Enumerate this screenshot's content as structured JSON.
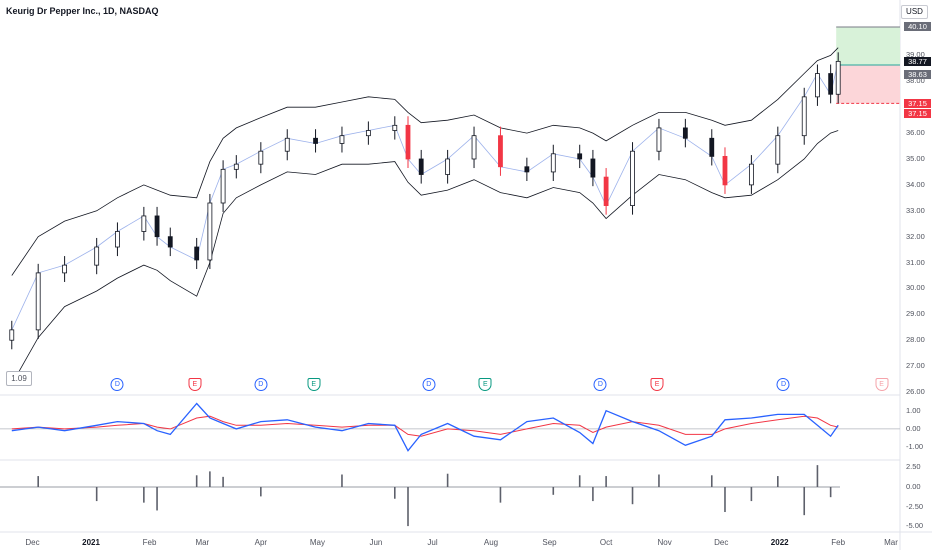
{
  "header": {
    "title": "Keurig Dr Pepper Inc., 1D, NASDAQ",
    "currency": "USD"
  },
  "price_scale": {
    "ticks": [
      "39.00",
      "38.00",
      "36.00",
      "35.00",
      "34.00",
      "33.00",
      "32.00",
      "31.00",
      "30.00",
      "29.00",
      "28.00",
      "27.00",
      "26.00"
    ],
    "tick_values": [
      39,
      38,
      36,
      35,
      34,
      33,
      32,
      31,
      30,
      29,
      28,
      27,
      26
    ],
    "tags": [
      {
        "name": "target-price-tag",
        "label": "40.10",
        "style": "gray",
        "value": 40.1
      },
      {
        "name": "last-price-tag",
        "label": "38.77",
        "style": "dark",
        "value": 38.77
      },
      {
        "name": "entry-price-tag",
        "label": "38.63",
        "style": "gray",
        "value": 38.63
      },
      {
        "name": "stop-price-tag",
        "label": "37.15",
        "style": "red",
        "value": 37.15
      },
      {
        "name": "stop-price-tag-2",
        "label": "37.15",
        "style": "red",
        "value": 37.15
      }
    ]
  },
  "value_box": "1.09",
  "oscillator_scale": [
    "1.00",
    "0.00",
    "-1.00"
  ],
  "oscillator_values": [
    1.0,
    0.0,
    -1.0
  ],
  "histogram_scale": [
    "2.50",
    "0.00",
    "-2.50",
    "-5.00"
  ],
  "histogram_values": [
    2.5,
    0.0,
    -2.5,
    -5.0
  ],
  "events": [
    {
      "type": "div",
      "label": "D",
      "date": "2021-01-15",
      "color": "#2962ff"
    },
    {
      "type": "earn",
      "label": "E",
      "date": "2021-02-25",
      "color": "#f23645"
    },
    {
      "type": "div",
      "label": "D",
      "date": "2021-04-01",
      "color": "#2962ff"
    },
    {
      "type": "earn",
      "label": "E",
      "date": "2021-04-29",
      "color": "#089981"
    },
    {
      "type": "div",
      "label": "D",
      "date": "2021-06-29",
      "color": "#2962ff"
    },
    {
      "type": "earn",
      "label": "E",
      "date": "2021-07-29",
      "color": "#089981"
    },
    {
      "type": "div",
      "label": "D",
      "date": "2021-09-28",
      "color": "#2962ff"
    },
    {
      "type": "earn",
      "label": "E",
      "date": "2021-10-28",
      "color": "#f23645"
    },
    {
      "type": "div",
      "label": "D",
      "date": "2022-01-03",
      "color": "#2962ff"
    },
    {
      "type": "earn",
      "label": "E",
      "date": "2022-02-24",
      "color": "#f5a3aa"
    }
  ],
  "time_axis": [
    {
      "label": "Dec",
      "bold": false,
      "date": "2020-12-01"
    },
    {
      "label": "2021",
      "bold": true,
      "date": "2021-01-01"
    },
    {
      "label": "Feb",
      "bold": false,
      "date": "2021-02-01"
    },
    {
      "label": "Mar",
      "bold": false,
      "date": "2021-03-01"
    },
    {
      "label": "Apr",
      "bold": false,
      "date": "2021-04-01"
    },
    {
      "label": "May",
      "bold": false,
      "date": "2021-05-01"
    },
    {
      "label": "Jun",
      "bold": false,
      "date": "2021-06-01"
    },
    {
      "label": "Jul",
      "bold": false,
      "date": "2021-07-01"
    },
    {
      "label": "Aug",
      "bold": false,
      "date": "2021-08-01"
    },
    {
      "label": "Sep",
      "bold": false,
      "date": "2021-09-01"
    },
    {
      "label": "Oct",
      "bold": false,
      "date": "2021-10-01"
    },
    {
      "label": "Nov",
      "bold": false,
      "date": "2021-11-01"
    },
    {
      "label": "Dec",
      "bold": false,
      "date": "2021-12-01"
    },
    {
      "label": "2022",
      "bold": true,
      "date": "2022-01-01"
    },
    {
      "label": "Feb",
      "bold": false,
      "date": "2022-02-01"
    },
    {
      "label": "Mar",
      "bold": false,
      "date": "2022-03-01"
    }
  ],
  "colors": {
    "candle": "#131722",
    "candle_highlight": "#f23645",
    "band": "#131722",
    "basis": "#5b7fde",
    "osc_fast": "#2962ff",
    "osc_slow": "#f23645",
    "histogram": "#5d606b",
    "profit_zone": "#d8f2d9",
    "loss_zone": "#fcd6d9",
    "profit_line": "#26a69a",
    "stop_line": "#f23645"
  },
  "chart_data": {
    "type": "candlestick",
    "series_price": {
      "x": [
        "2020-11-20",
        "2020-12-04",
        "2020-12-18",
        "2021-01-04",
        "2021-01-15",
        "2021-01-29",
        "2021-02-05",
        "2021-02-12",
        "2021-02-26",
        "2021-03-05",
        "2021-03-12",
        "2021-03-19",
        "2021-04-01",
        "2021-04-15",
        "2021-04-30",
        "2021-05-14",
        "2021-05-28",
        "2021-06-11",
        "2021-06-18",
        "2021-06-25",
        "2021-07-09",
        "2021-07-23",
        "2021-08-06",
        "2021-08-20",
        "2021-09-03",
        "2021-09-17",
        "2021-09-24",
        "2021-10-01",
        "2021-10-15",
        "2021-10-29",
        "2021-11-12",
        "2021-11-26",
        "2021-12-03",
        "2021-12-17",
        "2021-12-31",
        "2022-01-14",
        "2022-01-21",
        "2022-01-28",
        "2022-02-01"
      ],
      "close": [
        28.4,
        30.6,
        30.9,
        31.6,
        32.2,
        32.8,
        32.0,
        31.6,
        31.1,
        33.3,
        34.6,
        34.8,
        35.3,
        35.8,
        35.6,
        35.9,
        36.1,
        36.3,
        35.0,
        34.4,
        35.0,
        35.9,
        34.7,
        34.5,
        35.2,
        35.0,
        34.3,
        33.2,
        35.3,
        36.2,
        35.8,
        35.1,
        34.0,
        34.8,
        35.9,
        37.4,
        38.3,
        37.5,
        38.77
      ]
    },
    "series_bands": {
      "upper": [
        30.5,
        32.0,
        32.6,
        33.0,
        33.5,
        34.0,
        33.8,
        33.6,
        33.5,
        34.9,
        35.8,
        36.2,
        36.6,
        37.0,
        37.0,
        37.2,
        37.4,
        37.3,
        36.8,
        36.4,
        36.5,
        36.7,
        36.2,
        36.0,
        36.3,
        36.2,
        36.0,
        35.7,
        36.3,
        36.8,
        36.8,
        36.5,
        36.3,
        36.5,
        37.3,
        38.3,
        38.8,
        39.0,
        39.3
      ],
      "lower": [
        26.3,
        28.1,
        29.3,
        29.9,
        30.4,
        30.9,
        30.7,
        30.3,
        29.7,
        31.0,
        32.9,
        33.5,
        34.0,
        34.5,
        34.4,
        34.8,
        34.8,
        34.9,
        34.1,
        33.6,
        33.8,
        34.2,
        33.7,
        33.5,
        33.9,
        33.7,
        33.3,
        32.7,
        33.6,
        34.4,
        34.2,
        33.7,
        33.5,
        33.6,
        34.2,
        35.0,
        35.6,
        36.0,
        36.1
      ]
    },
    "trade": {
      "target": 40.1,
      "entry": 38.63,
      "stop": 37.15,
      "last": 38.77
    },
    "oscillator": {
      "fast": [
        -0.1,
        0.1,
        -0.1,
        0.2,
        0.4,
        0.3,
        -0.1,
        -0.3,
        1.4,
        0.6,
        0.3,
        0.0,
        0.4,
        0.5,
        0.1,
        -0.1,
        0.3,
        0.2,
        -1.2,
        -0.3,
        0.3,
        -0.4,
        -0.6,
        0.4,
        0.6,
        -0.2,
        -0.8,
        1.0,
        0.4,
        -0.1,
        -0.9,
        -0.4,
        0.5,
        0.6,
        0.8,
        0.8,
        0.2,
        -0.4,
        0.2
      ],
      "slow": [
        0.0,
        0.1,
        0.0,
        0.1,
        0.2,
        0.3,
        0.1,
        0.0,
        0.6,
        0.7,
        0.4,
        0.2,
        0.2,
        0.3,
        0.2,
        0.1,
        0.2,
        0.2,
        -0.3,
        -0.4,
        0.0,
        -0.1,
        -0.3,
        0.0,
        0.3,
        0.2,
        -0.2,
        0.1,
        0.4,
        0.2,
        -0.3,
        -0.3,
        0.0,
        0.3,
        0.5,
        0.7,
        0.6,
        0.2,
        0.1
      ]
    },
    "histogram": {
      "values": [
        0,
        1.4,
        0,
        -1.8,
        0,
        -2.0,
        -3.0,
        0,
        1.5,
        2.0,
        1.3,
        0,
        -1.2,
        0,
        0,
        1.6,
        0,
        -1.5,
        -5.0,
        0,
        1.7,
        0,
        -2.0,
        0,
        -1.0,
        1.5,
        -1.8,
        1.4,
        -2.2,
        1.6,
        0,
        1.5,
        -3.2,
        -1.8,
        1.4,
        -3.6,
        2.8,
        -1.3,
        0
      ],
      "ylim": [
        -5.5,
        3.2
      ]
    },
    "ylim_price": [
      26.0,
      40.6
    ],
    "ylim_oscillator": [
      -1.6,
      1.7
    ]
  }
}
